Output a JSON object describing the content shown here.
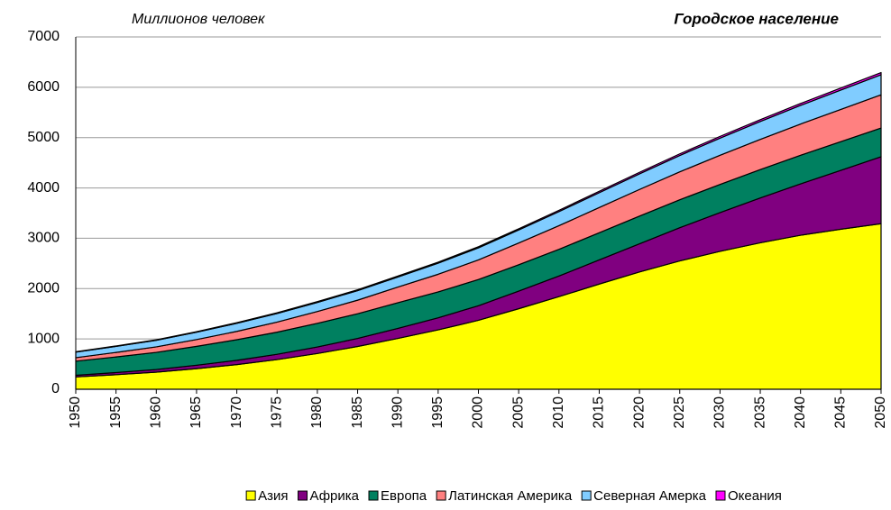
{
  "chart_data": {
    "type": "stacked-area",
    "title": "Городское население",
    "y_label": "Миллионов человек",
    "x": [
      1950,
      1955,
      1960,
      1965,
      1970,
      1975,
      1980,
      1985,
      1990,
      1995,
      2000,
      2005,
      2010,
      2015,
      2020,
      2025,
      2030,
      2035,
      2040,
      2045,
      2050
    ],
    "xlim": [
      1950,
      2050
    ],
    "ylim": [
      0,
      7000
    ],
    "yticks": [
      0,
      1000,
      2000,
      3000,
      4000,
      5000,
      6000,
      7000
    ],
    "grid": true,
    "legend": "bottom",
    "series": [
      {
        "name": "Азия",
        "color": "#ffff00",
        "values": [
          245,
          290,
          340,
          410,
          490,
          590,
          710,
          850,
          1010,
          1180,
          1370,
          1600,
          1840,
          2090,
          2330,
          2550,
          2740,
          2910,
          3060,
          3180,
          3290
        ]
      },
      {
        "name": "Африка",
        "color": "#800080",
        "values": [
          33,
          42,
          53,
          68,
          85,
          105,
          130,
          160,
          200,
          240,
          290,
          350,
          410,
          480,
          560,
          660,
          770,
          890,
          1020,
          1170,
          1330
        ]
      },
      {
        "name": "Европа",
        "color": "#008060",
        "values": [
          280,
          310,
          340,
          375,
          410,
          440,
          470,
          490,
          510,
          515,
          520,
          525,
          530,
          540,
          550,
          555,
          560,
          565,
          570,
          570,
          570
        ]
      },
      {
        "name": "Латинская Америка",
        "color": "#ff8080",
        "values": [
          70,
          90,
          110,
          135,
          165,
          200,
          235,
          270,
          310,
          350,
          390,
          430,
          470,
          500,
          530,
          555,
          580,
          600,
          620,
          640,
          660
        ]
      },
      {
        "name": "Северная Амерка",
        "color": "#80ccff",
        "values": [
          110,
          120,
          130,
          145,
          160,
          170,
          180,
          190,
          200,
          220,
          240,
          260,
          280,
          295,
          310,
          325,
          340,
          355,
          370,
          385,
          400
        ]
      },
      {
        "name": "Океания",
        "color": "#ff00ff",
        "values": [
          8,
          9,
          10,
          12,
          14,
          15,
          16,
          18,
          19,
          20,
          22,
          24,
          26,
          28,
          30,
          32,
          34,
          36,
          38,
          40,
          42
        ]
      }
    ]
  }
}
